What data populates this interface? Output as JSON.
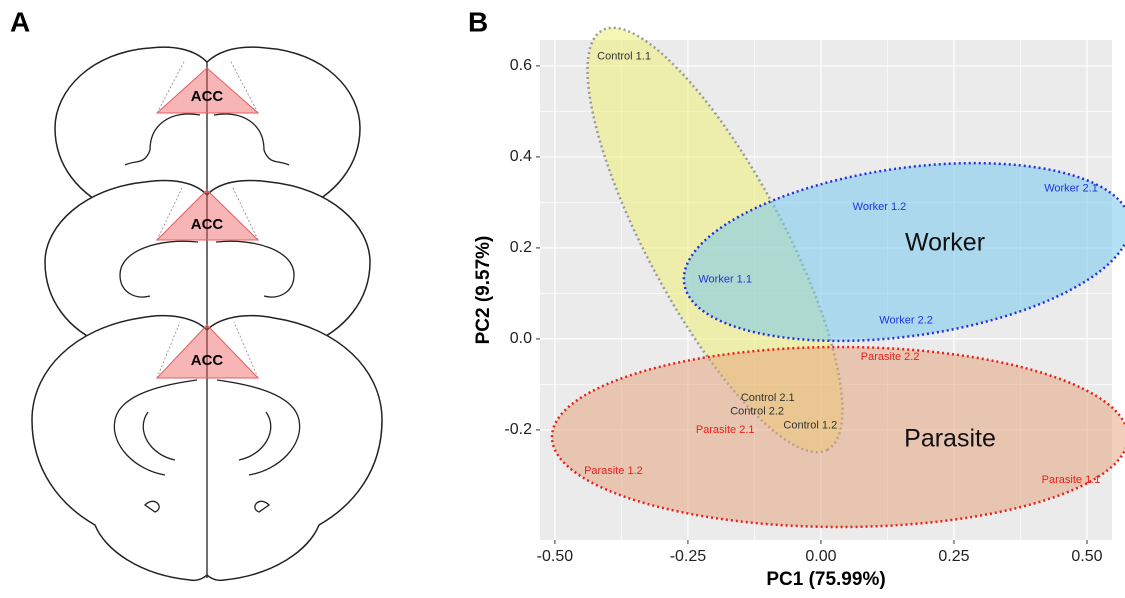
{
  "panels": [
    "A",
    "B"
  ],
  "diagram": {
    "region_labels": [
      "ACC",
      "ACC",
      "ACC"
    ]
  },
  "chart_data": {
    "type": "scatter",
    "x_label": "PC1 (75.99%)",
    "y_label": "PC2 (9.57%)",
    "xlim": [
      -0.528,
      0.547
    ],
    "ylim": [
      -0.442,
      0.657
    ],
    "xticks": [
      {
        "value": -0.5,
        "label": "-0.50"
      },
      {
        "value": -0.25,
        "label": "-0.25"
      },
      {
        "value": 0,
        "label": "0.00"
      },
      {
        "value": 0.25,
        "label": "0.25"
      },
      {
        "value": 0.5,
        "label": "0.50"
      }
    ],
    "yticks": [
      -0.2,
      {
        "value": 0,
        "label": "0.0"
      },
      0.2,
      0.4,
      0.6
    ],
    "grid": true,
    "series": [
      {
        "color": "#333333",
        "labels": [
          "Control 1.1",
          "Control 2.1",
          "Control 2.2",
          "Control 1.2"
        ],
        "x": [
          -0.37,
          -0.1,
          -0.12,
          -0.02
        ],
        "values": [
          0.62,
          -0.13,
          -0.16,
          -0.19
        ]
      },
      {
        "name": "Worker",
        "color": "#2233dd",
        "labels": [
          "Worker 2.1",
          "Worker 1.2",
          "Worker 1.1",
          "Worker 2.2"
        ],
        "x": [
          0.47,
          0.11,
          -0.18,
          0.16
        ],
        "values": [
          0.33,
          0.29,
          0.13,
          0.04
        ]
      },
      {
        "name": "Parasite",
        "color": "#e8201c",
        "labels": [
          "Parasite 2.2",
          "Parasite 2.1",
          "Parasite 1.2",
          "Parasite 1.1"
        ],
        "x": [
          0.13,
          -0.18,
          -0.39,
          0.47
        ],
        "values": [
          -0.04,
          -0.2,
          -0.29,
          -0.31
        ]
      }
    ]
  }
}
